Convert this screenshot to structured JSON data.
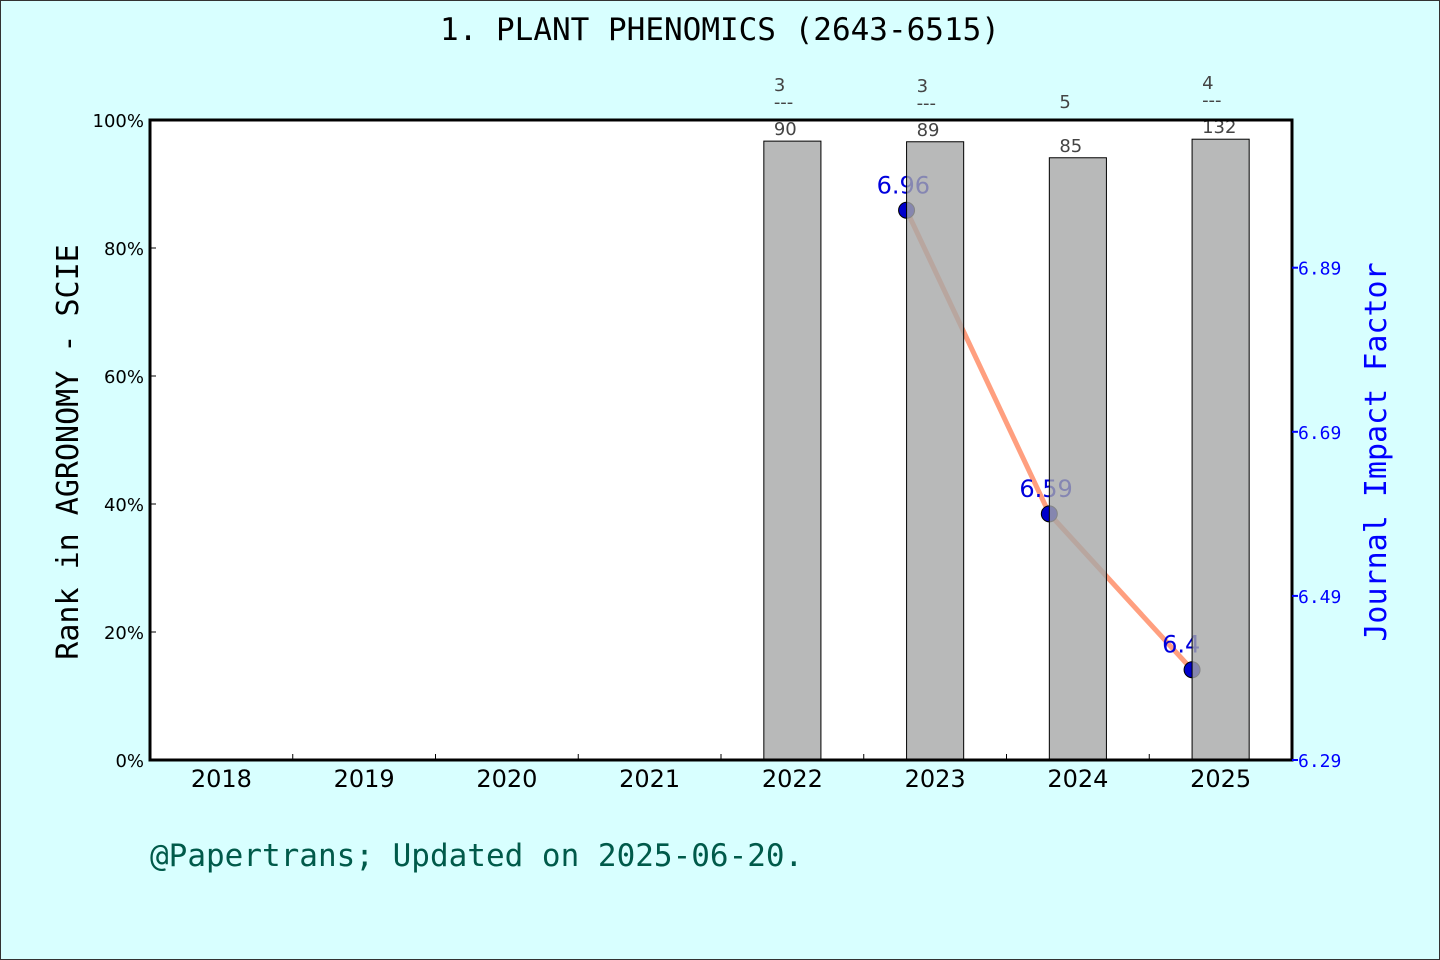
{
  "chart_data": {
    "type": "bar+line",
    "title": "1. PLANT PHENOMICS (2643-6515)",
    "ylabel": "Rank in AGRONOMY - SCIE",
    "y2label": "Journal Impact Factor",
    "categories": [
      "2018",
      "2019",
      "2020",
      "2021",
      "2022",
      "2023",
      "2024",
      "2025"
    ],
    "ylim": [
      0,
      100
    ],
    "yticks": [
      "0%",
      "20%",
      "40%",
      "60%",
      "80%",
      "100%"
    ],
    "y2lim": [
      6.29,
      7.07
    ],
    "y2ticks": [
      "6.29",
      "6.49",
      "6.69",
      "6.89"
    ],
    "bars": [
      {
        "year": "2022",
        "rank": 3,
        "total": 90,
        "percent": 96.7,
        "label_top": "3",
        "label_sep": "---",
        "label_bottom": "90"
      },
      {
        "year": "2023",
        "rank": 3,
        "total": 89,
        "percent": 96.6,
        "label_top": "3",
        "label_sep": "---",
        "label_bottom": "89"
      },
      {
        "year": "2024",
        "rank": 5,
        "total": 85,
        "percent": 94.1,
        "label_top": "5",
        "label_sep": "---",
        "label_bottom": "85"
      },
      {
        "year": "2025",
        "rank": 4,
        "total": 132,
        "percent": 97.0,
        "label_top": "4",
        "label_sep": "---",
        "label_bottom": "132"
      }
    ],
    "impact_factor": [
      {
        "year": "2023",
        "value": 6.96,
        "label": "6.96"
      },
      {
        "year": "2024",
        "value": 6.59,
        "label": "6.59"
      },
      {
        "year": "2025",
        "value": 6.4,
        "label": "6.4"
      }
    ],
    "grid": false,
    "colors": {
      "background": "#d8ffff",
      "plot": "#ffffff",
      "bar": "#b8b9ba",
      "line": "#ff9f7f",
      "point": "#0000cc",
      "y2axis": "#0000ff",
      "footer": "#005a4a"
    }
  },
  "footer": "@Papertrans; Updated on 2025-06-20."
}
